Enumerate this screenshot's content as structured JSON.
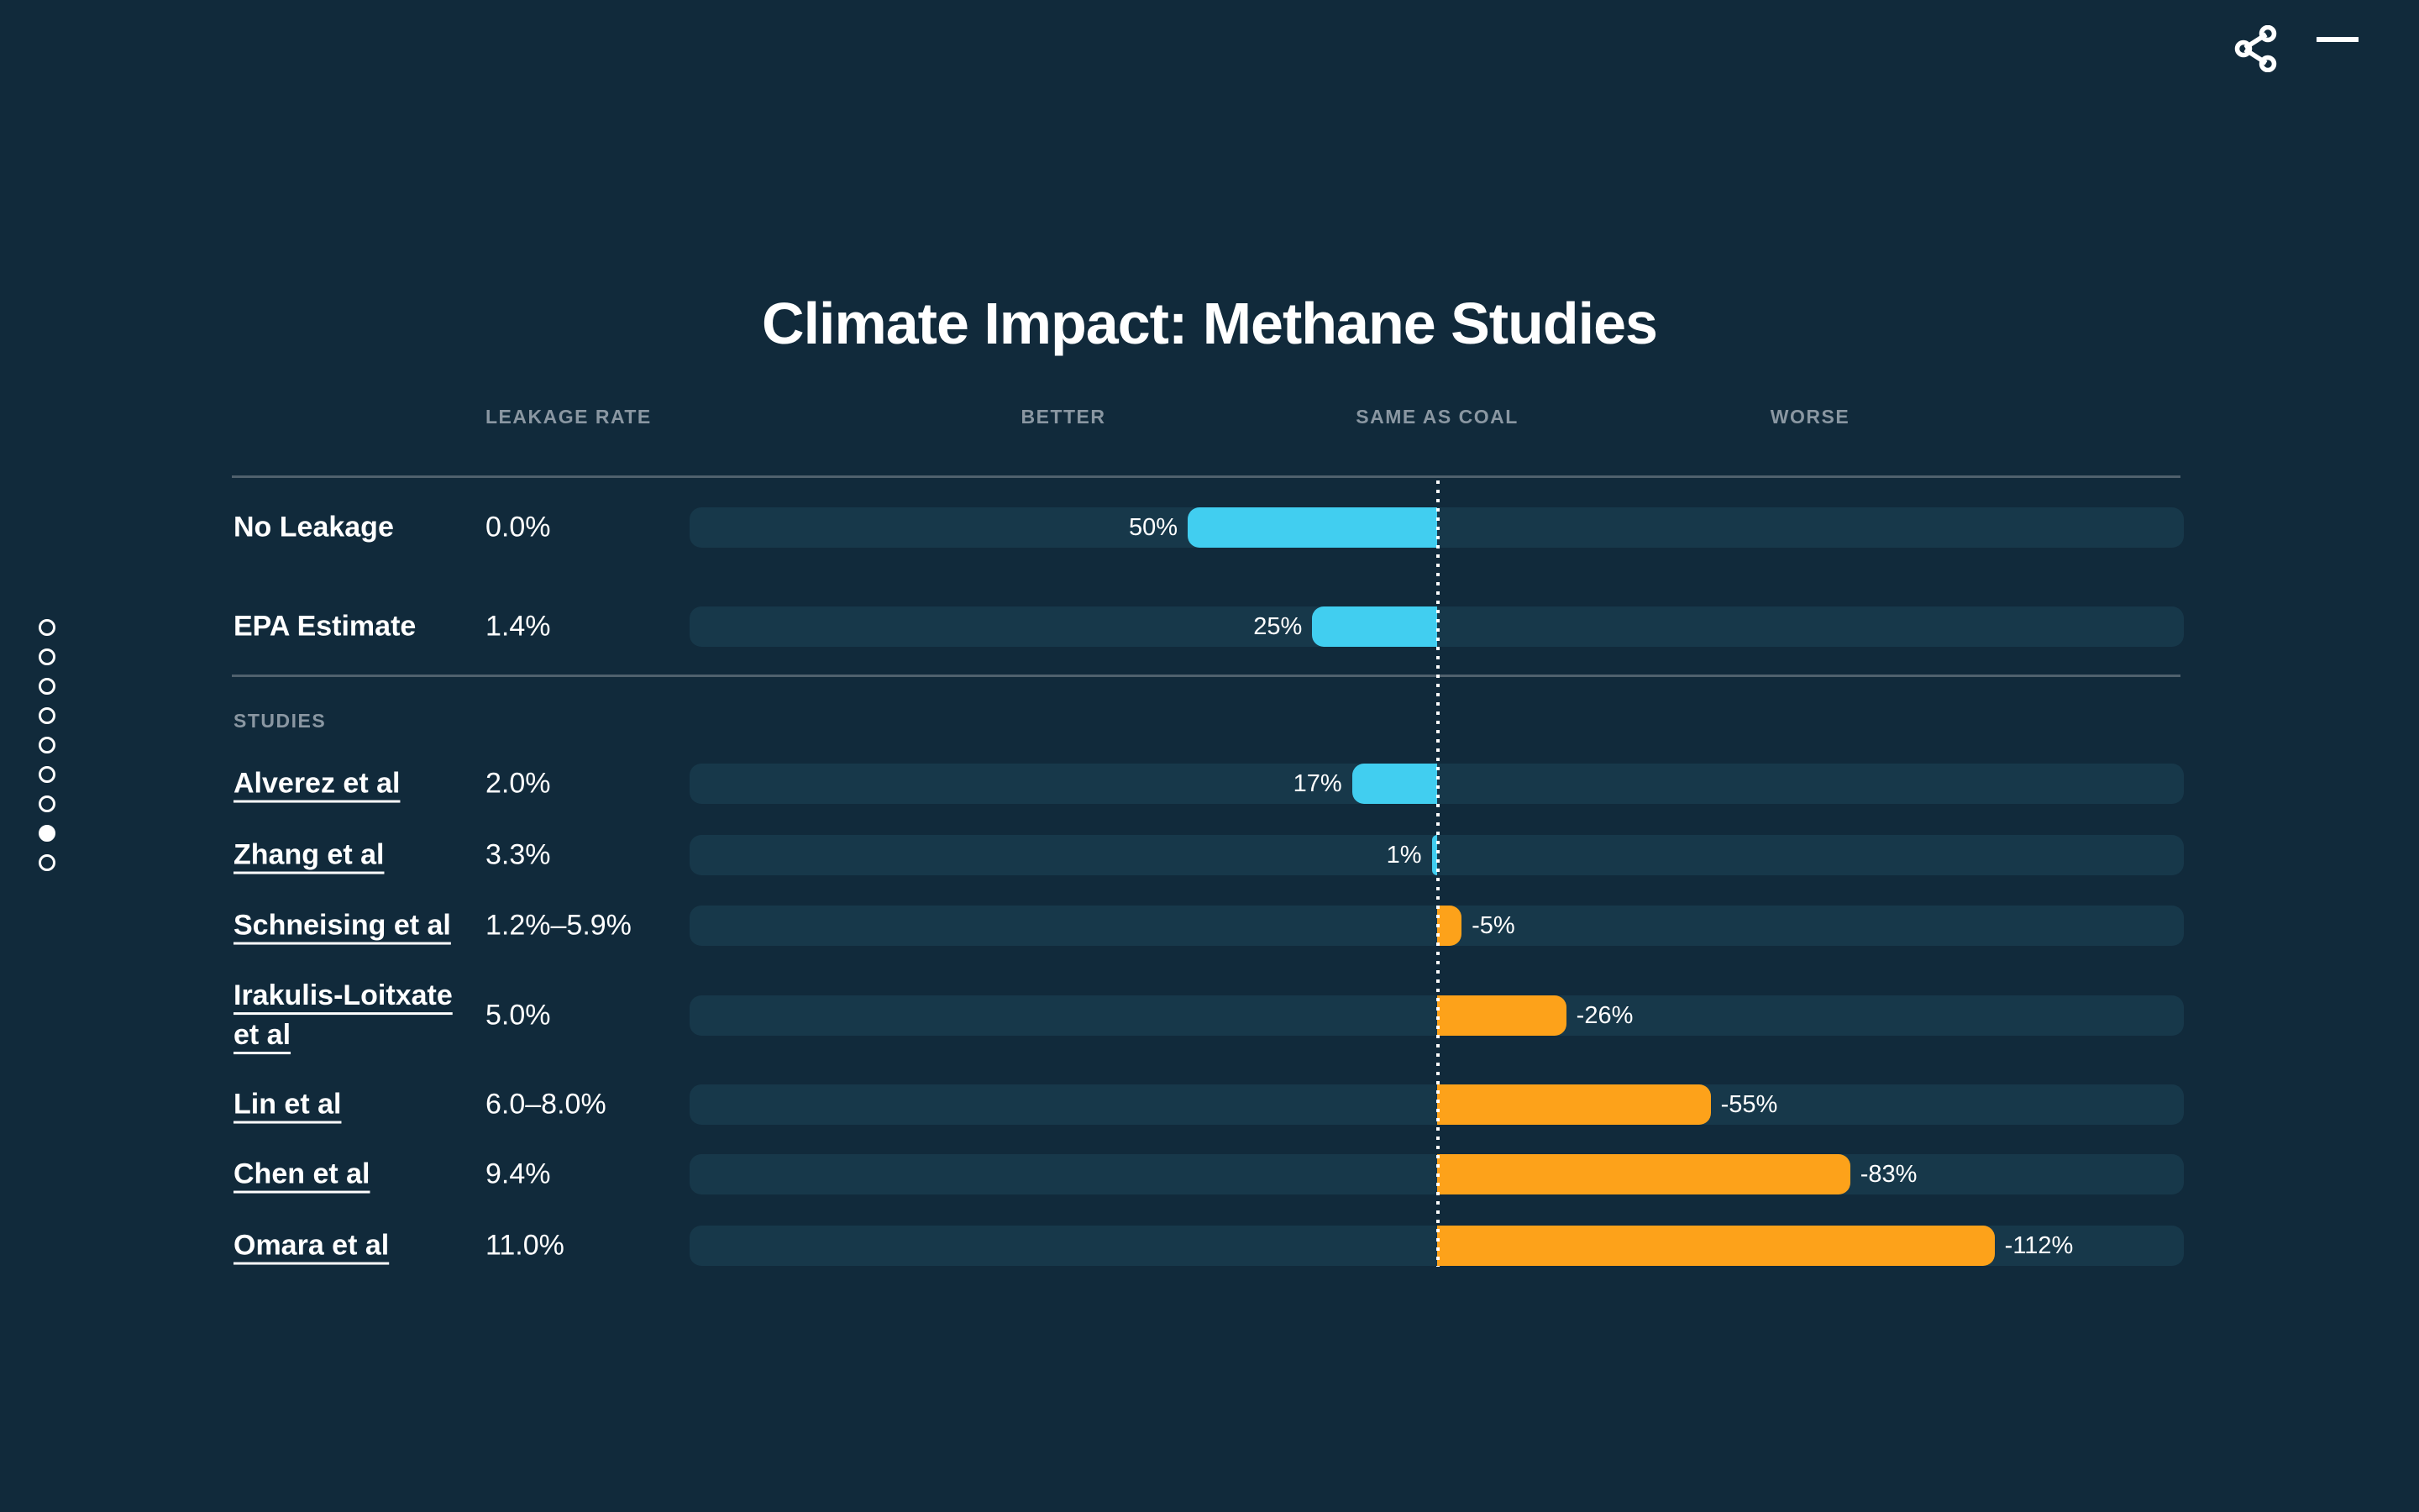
{
  "title": "Climate Impact: Methane Studies",
  "columns": {
    "leakage_rate": "LEAKAGE RATE",
    "better": "BETTER",
    "same_as_coal": "SAME AS COAL",
    "worse": "WORSE"
  },
  "section_label": "STUDIES",
  "pagination": {
    "total": 9,
    "active_index": 7
  },
  "colors": {
    "background": "#112A3B",
    "track": "#17384A",
    "positive_bar": "#41CEF0",
    "negative_bar": "#FDA21A",
    "muted_text": "#8A97A2",
    "separator": "#50616D",
    "white": "#FFFFFF"
  },
  "chart_data": {
    "type": "bar",
    "orientation": "horizontal-diverging",
    "title": "Climate Impact: Methane Studies",
    "axis": {
      "center_value": 0,
      "center_label": "SAME AS COAL",
      "left_label": "BETTER",
      "right_label": "WORSE",
      "half_range_pct": 150,
      "grid": "off",
      "center_line_style": "white dotted vertical"
    },
    "rows": [
      {
        "label": "No Leakage",
        "leakage_rate": "0.0%",
        "value": 50,
        "value_label": "50%",
        "is_link": false,
        "group": "baseline"
      },
      {
        "label": "EPA Estimate",
        "leakage_rate": "1.4%",
        "value": 25,
        "value_label": "25%",
        "is_link": false,
        "group": "baseline"
      },
      {
        "label": "Alverez et al",
        "leakage_rate": "2.0%",
        "value": 17,
        "value_label": "17%",
        "is_link": true,
        "group": "studies"
      },
      {
        "label": "Zhang et al",
        "leakage_rate": "3.3%",
        "value": 1,
        "value_label": "1%",
        "is_link": true,
        "group": "studies"
      },
      {
        "label": "Schneising et al",
        "leakage_rate": "1.2%–5.9%",
        "value": -5,
        "value_label": "-5%",
        "is_link": true,
        "group": "studies"
      },
      {
        "label": "Irakulis-Loitxate et al",
        "leakage_rate": "5.0%",
        "value": -26,
        "value_label": "-26%",
        "is_link": true,
        "group": "studies"
      },
      {
        "label": "Lin et al",
        "leakage_rate": "6.0–8.0%",
        "value": -55,
        "value_label": "-55%",
        "is_link": true,
        "group": "studies"
      },
      {
        "label": "Chen et al",
        "leakage_rate": "9.4%",
        "value": -83,
        "value_label": "-83%",
        "is_link": true,
        "group": "studies"
      },
      {
        "label": "Omara et al",
        "leakage_rate": "11.0%",
        "value": -112,
        "value_label": "-112%",
        "is_link": true,
        "group": "studies"
      }
    ]
  }
}
